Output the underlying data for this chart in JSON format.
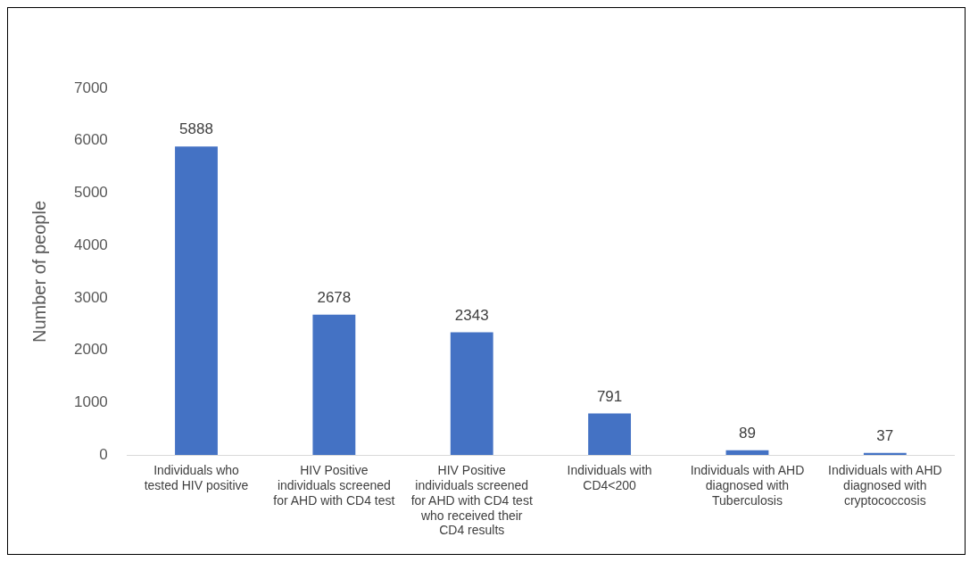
{
  "chart_data": {
    "type": "bar",
    "ylabel": "Number of people",
    "categories": [
      "Individuals who tested HIV positive",
      "HIV Positive individuals screened for AHD with CD4 test",
      "HIV Positive individuals screened for AHD with CD4 test who received their CD4 results",
      "Individuals with CD4<200",
      "Individuals with AHD diagnosed with Tuberculosis",
      "Individuals with AHD diagnosed with cryptococcosis"
    ],
    "values": [
      5888,
      2678,
      2343,
      791,
      89,
      37
    ],
    "color": "#4472c4",
    "ylim": [
      0,
      7000
    ],
    "yticks": [
      0,
      1000,
      2000,
      3000,
      4000,
      5000,
      6000,
      7000
    ],
    "grid": false,
    "legend": false,
    "data_labels": true
  }
}
